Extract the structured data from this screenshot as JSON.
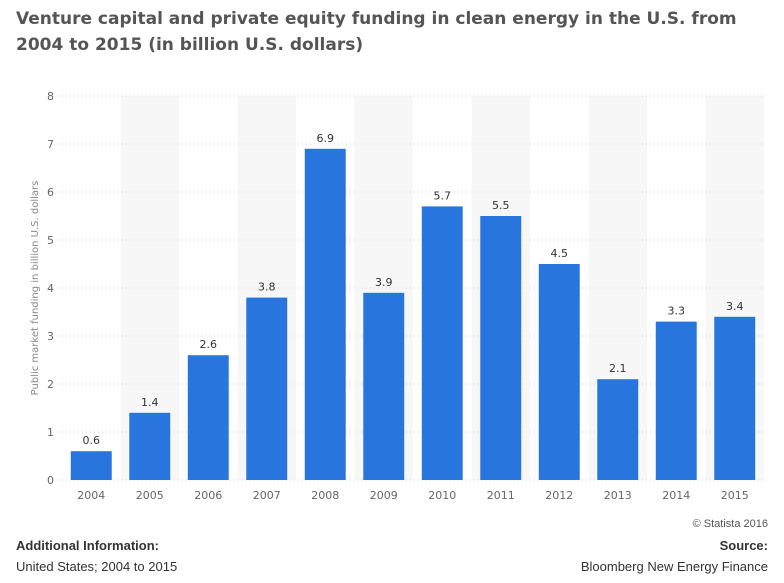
{
  "header": {
    "title": "Venture capital and private equity funding in clean energy in the U.S. from 2004 to 2015 (in billion U.S. dollars)"
  },
  "footer": {
    "copyright": "© Statista 2016",
    "additional_info_label": "Additional Information:",
    "additional_info_value": "United States; 2004 to 2015",
    "source_label": "Source:",
    "source_value": "Bloomberg New Energy Finance"
  },
  "chart_data": {
    "type": "bar",
    "title": "Venture capital and private equity funding in clean energy in the U.S. from 2004 to 2015 (in billion U.S. dollars)",
    "xlabel": "",
    "ylabel": "Public market funding in billion U.S. dollars",
    "categories": [
      "2004",
      "2005",
      "2006",
      "2007",
      "2008",
      "2009",
      "2010",
      "2011",
      "2012",
      "2013",
      "2014",
      "2015"
    ],
    "values": [
      0.6,
      1.4,
      2.6,
      3.8,
      6.9,
      3.9,
      5.7,
      5.5,
      4.5,
      2.1,
      3.3,
      3.4
    ],
    "data_labels": [
      "0.6",
      "1.4",
      "2.6",
      "3.8",
      "6.9",
      "3.9",
      "5.7",
      "5.5",
      "4.5",
      "2.1",
      "3.3",
      "3.4"
    ],
    "yticks": [
      "0",
      "1",
      "2",
      "3",
      "4",
      "5",
      "6",
      "7",
      "8"
    ],
    "ylim": [
      0,
      8
    ],
    "grid": true,
    "legend": "none",
    "bar_color": "#2876dd"
  }
}
